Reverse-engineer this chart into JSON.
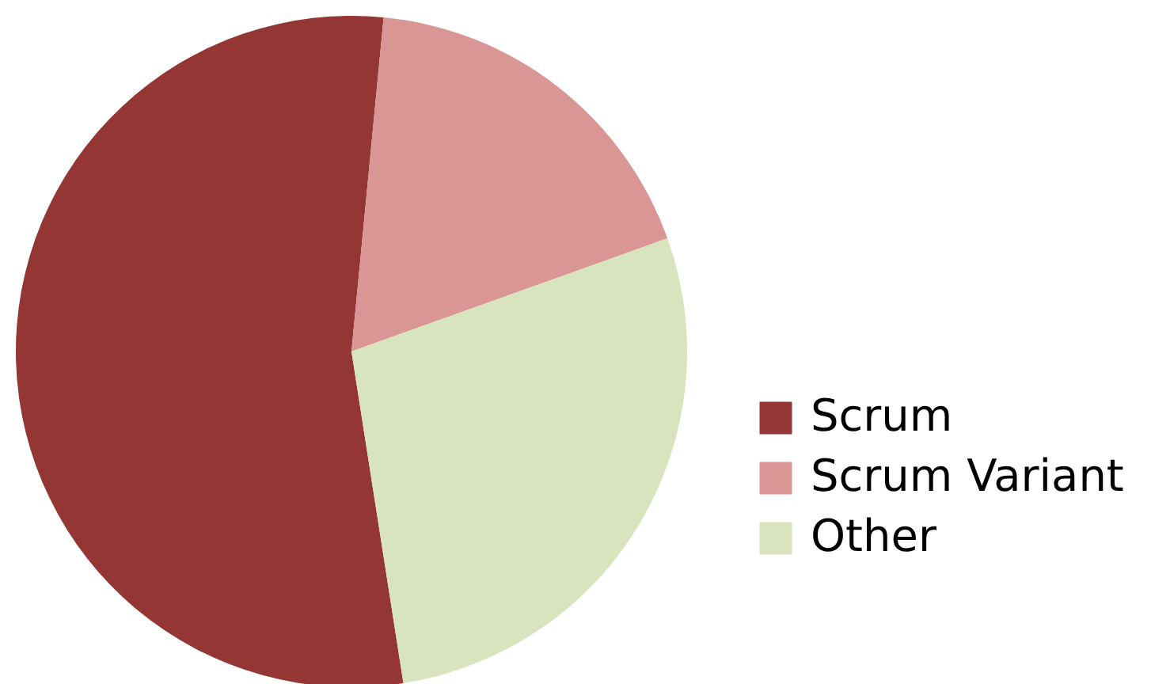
{
  "chart_data": {
    "type": "pie",
    "categories": [
      "Scrum",
      "Scrum Variant",
      "Other"
    ],
    "values": [
      54,
      18,
      28
    ],
    "colors": [
      "#943634",
      "#d99694",
      "#d7e4bd"
    ],
    "legend": "right"
  }
}
